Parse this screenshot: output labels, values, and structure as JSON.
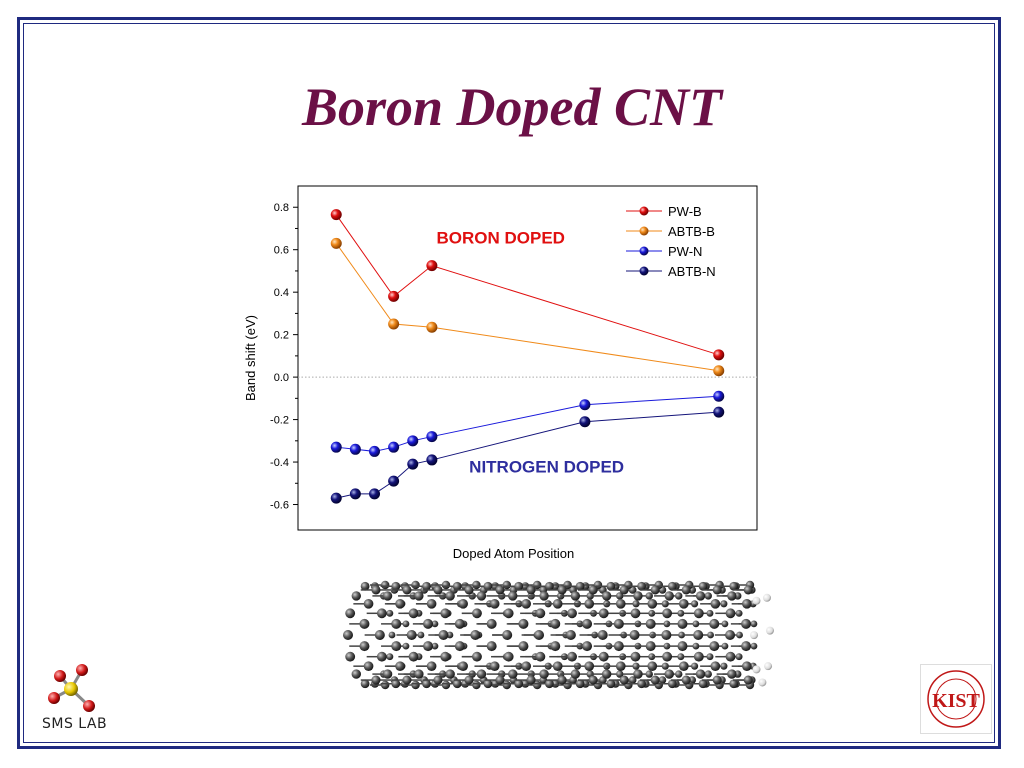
{
  "slide": {
    "title": "Boron Doped CNT",
    "logo_left_text": "SMS LAB",
    "logo_right_text": "KIST"
  },
  "colors": {
    "title": "#6b1046",
    "frame": "#1f2a80",
    "pw_b": "#e01010",
    "abtb_b": "#f08a1a",
    "pw_n": "#1a1adb",
    "abtb_n": "#14147a",
    "boron_annotation": "#e01010",
    "nitrogen_annotation": "#2e2e9e"
  },
  "chart_data": {
    "type": "line",
    "title": "",
    "xlabel": "Doped Atom Position",
    "ylabel": "Band shift (eV)",
    "xlim": [
      0,
      12
    ],
    "ylim": [
      -0.72,
      0.9
    ],
    "yticks": [
      -0.6,
      -0.4,
      -0.2,
      0.0,
      0.2,
      0.4,
      0.6,
      0.8
    ],
    "ytick_labels": [
      "-0.6",
      "-0.4",
      "-0.2",
      "0.0",
      "0.2",
      "0.4",
      "0.6",
      "0.8"
    ],
    "zero_line": true,
    "legend_position": "top-right",
    "series": [
      {
        "name": "PW-B",
        "color_key": "pw_b",
        "line": "solid",
        "x": [
          1,
          2.5,
          3.5,
          11
        ],
        "y": [
          0.765,
          0.38,
          0.525,
          0.105
        ]
      },
      {
        "name": "ABTB-B",
        "color_key": "abtb_b",
        "line": "solid",
        "x": [
          1,
          2.5,
          3.5,
          11
        ],
        "y": [
          0.63,
          0.25,
          0.235,
          0.03
        ]
      },
      {
        "name": "PW-N",
        "color_key": "pw_n",
        "line": "solid",
        "x": [
          1,
          1.5,
          2,
          2.5,
          3,
          3.5,
          7.5,
          11
        ],
        "y": [
          -0.33,
          -0.34,
          -0.35,
          -0.33,
          -0.3,
          -0.28,
          -0.13,
          -0.09
        ]
      },
      {
        "name": "ABTB-N",
        "color_key": "abtb_n",
        "line": "solid",
        "x": [
          1,
          1.5,
          2,
          2.5,
          3,
          3.5,
          7.5,
          11
        ],
        "y": [
          -0.57,
          -0.55,
          -0.55,
          -0.49,
          -0.41,
          -0.39,
          -0.21,
          -0.165
        ]
      }
    ],
    "annotations": [
      {
        "text": "BORON DOPED",
        "x": 5.3,
        "y": 0.63,
        "color_key": "boron_annotation"
      },
      {
        "text": "NITROGEN DOPED",
        "x": 6.5,
        "y": -0.45,
        "color_key": "nitrogen_annotation"
      }
    ]
  }
}
